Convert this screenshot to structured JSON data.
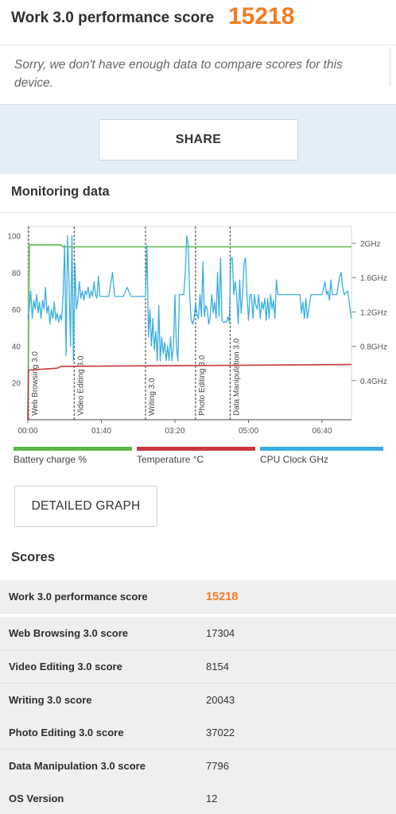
{
  "header": {
    "title": "Work 3.0 performance score",
    "score": "15218",
    "note": "Sorry, we don't have enough data to compare scores for this device."
  },
  "share": {
    "label": "SHARE"
  },
  "monitoring": {
    "title": "Monitoring data"
  },
  "chart_data": {
    "type": "line",
    "x_ticks": [
      "00:00",
      "01:40",
      "03:20",
      "05:00",
      "06:40"
    ],
    "y_left_ticks": [
      "20",
      "40",
      "60",
      "80",
      "100"
    ],
    "y_right_ticks": [
      "0.4GHz",
      "0.8GHz",
      "1.2GHz",
      "1.6GHz",
      "2GHz"
    ],
    "xlim_seconds": [
      0,
      440
    ],
    "ylim_left": [
      0,
      105
    ],
    "segments": [
      {
        "label": "Web Browsing 3.0",
        "t": 0
      },
      {
        "label": "Video Editing 3.0",
        "t": 63
      },
      {
        "label": "Writing 3.0",
        "t": 160
      },
      {
        "label": "Photo Editing 3.0",
        "t": 228
      },
      {
        "label": "Data Manipulation 3.0",
        "t": 275
      }
    ],
    "series": [
      {
        "name": "Battery charge %",
        "color": "#5cb848",
        "points": [
          [
            0,
            0
          ],
          [
            1,
            40
          ],
          [
            2,
            95
          ],
          [
            45,
            95
          ],
          [
            48,
            94
          ],
          [
            440,
            94
          ]
        ]
      },
      {
        "name": "Temperature °C",
        "color": "#c8373d",
        "points": [
          [
            0,
            0
          ],
          [
            1,
            27
          ],
          [
            40,
            28
          ],
          [
            45,
            29
          ],
          [
            440,
            30
          ]
        ]
      },
      {
        "name": "CPU Clock GHz",
        "color": "#3aaee0",
        "points": [
          [
            0,
            55
          ],
          [
            2,
            60
          ],
          [
            4,
            70
          ],
          [
            6,
            55
          ],
          [
            8,
            65
          ],
          [
            10,
            60
          ],
          [
            12,
            68
          ],
          [
            14,
            58
          ],
          [
            16,
            64
          ],
          [
            18,
            55
          ],
          [
            20,
            65
          ],
          [
            22,
            60
          ],
          [
            24,
            72
          ],
          [
            26,
            58
          ],
          [
            28,
            62
          ],
          [
            30,
            52
          ],
          [
            32,
            60
          ],
          [
            34,
            55
          ],
          [
            36,
            64
          ],
          [
            38,
            54
          ],
          [
            40,
            58
          ],
          [
            42,
            53
          ],
          [
            44,
            57
          ],
          [
            46,
            54
          ],
          [
            48,
            68
          ],
          [
            50,
            95
          ],
          [
            52,
            35
          ],
          [
            54,
            100
          ],
          [
            56,
            75
          ],
          [
            58,
            40
          ],
          [
            60,
            100
          ],
          [
            62,
            32
          ],
          [
            64,
            85
          ],
          [
            66,
            60
          ],
          [
            68,
            65
          ],
          [
            70,
            75
          ],
          [
            72,
            66
          ],
          [
            74,
            70
          ],
          [
            76,
            65
          ],
          [
            78,
            70
          ],
          [
            80,
            68
          ],
          [
            82,
            72
          ],
          [
            84,
            66
          ],
          [
            86,
            70
          ],
          [
            88,
            67
          ],
          [
            90,
            75
          ],
          [
            92,
            68
          ],
          [
            94,
            66
          ],
          [
            96,
            78
          ],
          [
            98,
            67
          ],
          [
            100,
            67
          ],
          [
            105,
            67
          ],
          [
            110,
            67
          ],
          [
            115,
            80
          ],
          [
            118,
            67
          ],
          [
            125,
            67
          ],
          [
            130,
            67
          ],
          [
            135,
            72
          ],
          [
            140,
            67
          ],
          [
            150,
            67
          ],
          [
            160,
            67
          ],
          [
            162,
            95
          ],
          [
            164,
            45
          ],
          [
            166,
            60
          ],
          [
            168,
            40
          ],
          [
            170,
            55
          ],
          [
            172,
            38
          ],
          [
            174,
            48
          ],
          [
            176,
            32
          ],
          [
            178,
            62
          ],
          [
            180,
            32
          ],
          [
            182,
            45
          ],
          [
            184,
            36
          ],
          [
            186,
            42
          ],
          [
            188,
            32
          ],
          [
            190,
            40
          ],
          [
            192,
            32
          ],
          [
            194,
            45
          ],
          [
            196,
            32
          ],
          [
            198,
            40
          ],
          [
            200,
            68
          ],
          [
            202,
            40
          ],
          [
            204,
            32
          ],
          [
            206,
            68
          ],
          [
            208,
            68
          ],
          [
            210,
            68
          ],
          [
            212,
            68
          ],
          [
            214,
            80
          ],
          [
            216,
            100
          ],
          [
            218,
            95
          ],
          [
            220,
            68
          ],
          [
            222,
            55
          ],
          [
            224,
            52
          ],
          [
            226,
            55
          ],
          [
            228,
            63
          ],
          [
            230,
            57
          ],
          [
            232,
            55
          ],
          [
            234,
            68
          ],
          [
            236,
            56
          ],
          [
            238,
            86
          ],
          [
            240,
            56
          ],
          [
            242,
            62
          ],
          [
            244,
            60
          ],
          [
            246,
            52
          ],
          [
            248,
            56
          ],
          [
            250,
            68
          ],
          [
            252,
            58
          ],
          [
            254,
            64
          ],
          [
            256,
            55
          ],
          [
            258,
            80
          ],
          [
            260,
            56
          ],
          [
            262,
            88
          ],
          [
            264,
            54
          ],
          [
            266,
            53
          ],
          [
            268,
            53
          ],
          [
            270,
            53
          ],
          [
            272,
            56
          ],
          [
            274,
            53
          ],
          [
            276,
            88
          ],
          [
            278,
            88
          ],
          [
            280,
            68
          ],
          [
            282,
            75
          ],
          [
            284,
            68
          ],
          [
            286,
            52
          ],
          [
            288,
            76
          ],
          [
            290,
            58
          ],
          [
            292,
            68
          ],
          [
            294,
            85
          ],
          [
            296,
            88
          ],
          [
            298,
            68
          ],
          [
            300,
            54
          ],
          [
            302,
            68
          ],
          [
            304,
            68
          ],
          [
            306,
            55
          ],
          [
            308,
            68
          ],
          [
            310,
            62
          ],
          [
            312,
            60
          ],
          [
            314,
            68
          ],
          [
            316,
            55
          ],
          [
            318,
            64
          ],
          [
            320,
            60
          ],
          [
            322,
            66
          ],
          [
            324,
            54
          ],
          [
            326,
            66
          ],
          [
            328,
            55
          ],
          [
            330,
            68
          ],
          [
            332,
            60
          ],
          [
            334,
            65
          ],
          [
            336,
            55
          ],
          [
            338,
            76
          ],
          [
            340,
            68
          ],
          [
            345,
            68
          ],
          [
            350,
            68
          ],
          [
            355,
            68
          ],
          [
            360,
            68
          ],
          [
            365,
            68
          ],
          [
            370,
            68
          ],
          [
            372,
            58
          ],
          [
            374,
            64
          ],
          [
            376,
            55
          ],
          [
            378,
            66
          ],
          [
            380,
            55
          ],
          [
            385,
            68
          ],
          [
            390,
            68
          ],
          [
            395,
            68
          ],
          [
            400,
            68
          ],
          [
            404,
            75
          ],
          [
            406,
            68
          ],
          [
            408,
            70
          ],
          [
            410,
            65
          ],
          [
            412,
            76
          ],
          [
            414,
            68
          ],
          [
            420,
            68
          ],
          [
            424,
            78
          ],
          [
            426,
            80
          ],
          [
            428,
            72
          ],
          [
            430,
            68
          ],
          [
            435,
            70
          ],
          [
            438,
            60
          ],
          [
            440,
            55
          ]
        ]
      }
    ],
    "legend": [
      "Battery charge %",
      "Temperature °C",
      "CPU Clock GHz"
    ]
  },
  "detailed_graph": {
    "label": "DETAILED GRAPH"
  },
  "scores": {
    "title": "Scores",
    "rows": [
      {
        "label": "Work 3.0 performance score",
        "value": "15218"
      },
      {
        "label": "Web Browsing 3.0 score",
        "value": "17304"
      },
      {
        "label": "Video Editing 3.0 score",
        "value": "8154"
      },
      {
        "label": "Writing 3.0 score",
        "value": "20043"
      },
      {
        "label": "Photo Editing 3.0 score",
        "value": "37022"
      },
      {
        "label": "Data Manipulation 3.0 score",
        "value": "7796"
      },
      {
        "label": "OS Version",
        "value": "12"
      }
    ]
  }
}
